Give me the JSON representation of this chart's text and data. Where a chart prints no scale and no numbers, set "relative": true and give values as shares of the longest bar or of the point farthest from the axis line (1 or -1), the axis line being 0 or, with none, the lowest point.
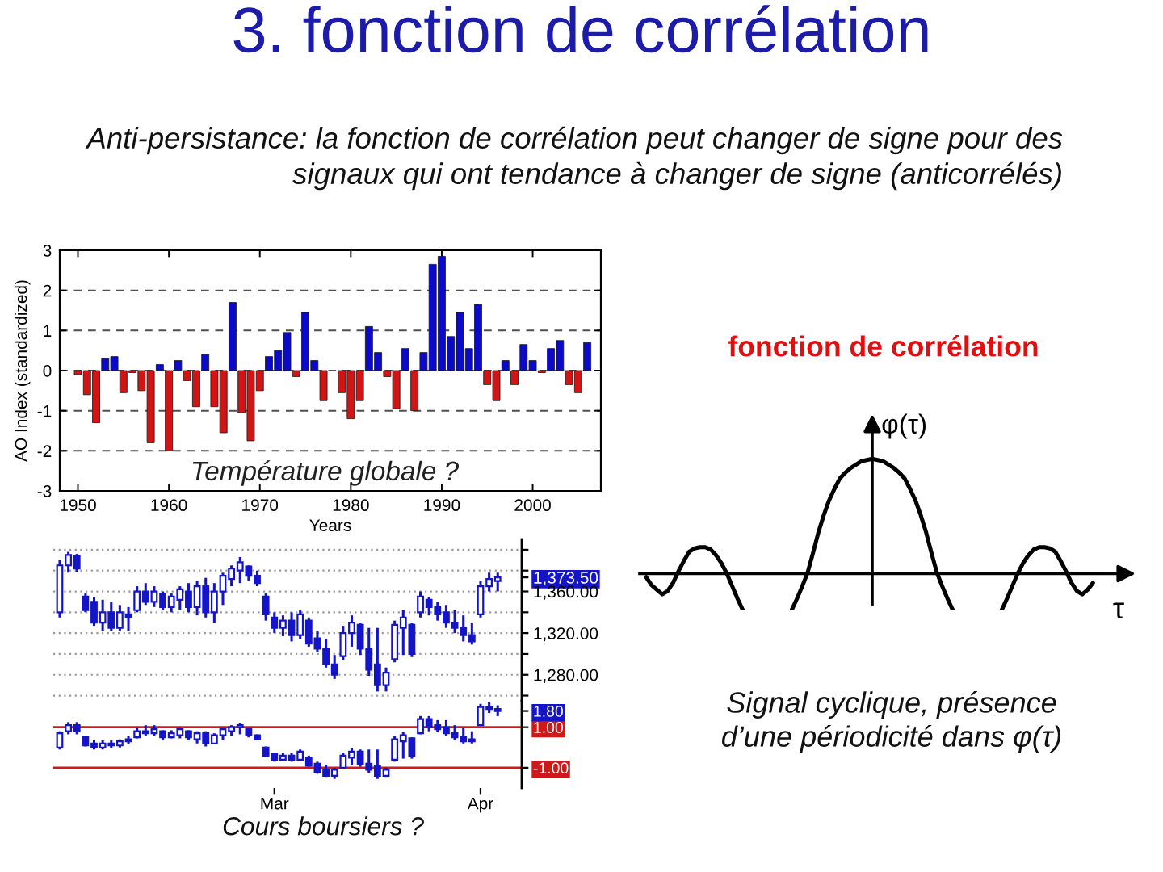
{
  "chart_data": [
    {
      "type": "bar",
      "title": "3. fonction de corrélation",
      "subtitle": "Anti-persistance: la fonction de corrélation peut changer de signe pour des\nsignaux qui ont tendance à changer de signe (anticorrélés)",
      "xlabel": "Years",
      "ylabel": "AO Index (standardized)",
      "annotations": [
        "Température globale ?"
      ],
      "x": [
        1950,
        1951,
        1952,
        1953,
        1954,
        1955,
        1956,
        1957,
        1958,
        1959,
        1960,
        1961,
        1962,
        1963,
        1964,
        1965,
        1966,
        1967,
        1968,
        1969,
        1970,
        1971,
        1972,
        1973,
        1974,
        1975,
        1976,
        1977,
        1978,
        1979,
        1980,
        1981,
        1982,
        1983,
        1984,
        1985,
        1986,
        1987,
        1988,
        1989,
        1990,
        1991,
        1992,
        1993,
        1994,
        1995,
        1996,
        1997,
        1998,
        1999,
        2000,
        2001,
        2002,
        2003,
        2004,
        2005,
        2006
      ],
      "values": [
        -0.1,
        -0.6,
        -1.3,
        0.3,
        0.35,
        -0.55,
        -0.05,
        -0.5,
        -1.8,
        0.15,
        -2.0,
        0.25,
        -0.25,
        -0.9,
        0.4,
        -0.9,
        -1.55,
        1.7,
        -1.05,
        -1.75,
        -0.5,
        0.35,
        0.5,
        0.95,
        -0.15,
        1.45,
        0.25,
        -0.75,
        null,
        -0.55,
        -1.2,
        -0.75,
        1.1,
        0.45,
        -0.15,
        -0.95,
        0.55,
        -1.0,
        0.45,
        2.65,
        2.85,
        0.85,
        1.45,
        0.55,
        1.65,
        -0.35,
        -0.75,
        0.25,
        -0.35,
        0.65,
        0.25,
        -0.05,
        0.55,
        0.75,
        -0.35,
        -0.55,
        0.7
      ],
      "colors": [
        "#d21414",
        "#d21414",
        "#d21414",
        "#0a0ac8",
        "#0a0ac8",
        "#d21414",
        "#d21414",
        "#d21414",
        "#d21414",
        "#0a0ac8",
        "#d21414",
        "#0a0ac8",
        "#d21414",
        "#d21414",
        "#0a0ac8",
        "#d21414",
        "#d21414",
        "#0a0ac8",
        "#d21414",
        "#d21414",
        "#d21414",
        "#0a0ac8",
        "#0a0ac8",
        "#0a0ac8",
        "#d21414",
        "#0a0ac8",
        "#0a0ac8",
        "#d21414",
        "#0a0ac8",
        "#d21414",
        "#d21414",
        "#d21414",
        "#0a0ac8",
        "#0a0ac8",
        "#d21414",
        "#d21414",
        "#0a0ac8",
        "#d21414",
        "#0a0ac8",
        "#0a0ac8",
        "#0a0ac8",
        "#0a0ac8",
        "#0a0ac8",
        "#0a0ac8",
        "#0a0ac8",
        "#d21414",
        "#d21414",
        "#0a0ac8",
        "#d21414",
        "#0a0ac8",
        "#0a0ac8",
        "#d21414",
        "#0a0ac8",
        "#0a0ac8",
        "#d21414",
        "#d21414",
        "#0a0ac8"
      ],
      "xlim": [
        1948,
        2007.5
      ],
      "xticks": [
        1950,
        1960,
        1970,
        1980,
        1990,
        2000
      ],
      "ylim": [
        -3,
        3
      ],
      "yticks": [
        -3,
        -2,
        -1,
        0,
        1,
        2,
        3
      ],
      "grid": "y"
    },
    {
      "type": "line",
      "title": "fonction de corrélation",
      "xlabel": "τ",
      "ylabel": "φ(τ)",
      "annotations": [
        "Signal cyclique, présence\nd’une périodicité dans φ(τ)"
      ],
      "relative": true,
      "categories": [
        null,
        null,
        null,
        null,
        null,
        null,
        null,
        null,
        null,
        null,
        null,
        null,
        null,
        null,
        null,
        null,
        null,
        null,
        null,
        null,
        null,
        null,
        null,
        null,
        null,
        null,
        null,
        null,
        null,
        null,
        null,
        null,
        null,
        null,
        null,
        null,
        null,
        null,
        null,
        null,
        null,
        null,
        null,
        null,
        null,
        null,
        null,
        null,
        null,
        null,
        null,
        null,
        null,
        null,
        null,
        null,
        null,
        null,
        null,
        null,
        null,
        null,
        null,
        null,
        null,
        null,
        null,
        null,
        null,
        null,
        null,
        null,
        null,
        null,
        null,
        null,
        null,
        null,
        null,
        null,
        null,
        null,
        null,
        null
      ],
      "series": [
        {
          "color": "#000000",
          "values": [
            -0.03,
            -0.1,
            -0.14,
            -0.18,
            -0.15,
            -0.08,
            0.02,
            0.11,
            0.19,
            0.22,
            0.23,
            0.23,
            0.21,
            0.16,
            0.09,
            0,
            -0.11,
            -0.22,
            -0.32,
            null,
            null,
            null,
            null,
            null,
            null,
            null,
            null,
            null,
            null,
            null,
            null,
            null,
            null,
            null,
            null,
            null,
            null,
            null,
            null,
            null,
            null,
            null,
            null,
            null,
            null,
            null,
            null,
            null,
            null,
            null,
            null,
            null,
            null,
            null,
            null,
            null,
            null,
            null,
            null,
            null,
            null,
            null,
            null,
            null,
            null,
            null,
            null,
            null,
            null,
            null,
            null,
            null,
            null,
            null,
            null,
            null,
            null,
            null,
            null,
            null,
            null,
            null,
            null,
            null
          ]
        },
        {
          "color": "#000000",
          "values": [
            null,
            null,
            null,
            null,
            null,
            null,
            null,
            null,
            null,
            null,
            null,
            null,
            null,
            null,
            null,
            null,
            null,
            null,
            null,
            null,
            null,
            null,
            null,
            null,
            null,
            null,
            null,
            -0.32,
            -0.22,
            -0.11,
            0.01,
            0.18,
            0.36,
            0.51,
            0.64,
            0.74,
            0.83,
            0.88,
            0.92,
            0.95,
            0.98,
            0.99,
            1,
            0.99,
            0.98,
            0.95,
            0.92,
            0.88,
            0.83,
            0.74,
            0.64,
            0.51,
            0.36,
            0.18,
            0.01,
            -0.11,
            -0.22,
            -0.32,
            null,
            null,
            null,
            null,
            null,
            null,
            null,
            null,
            null,
            null,
            null,
            null,
            null,
            null,
            null,
            null,
            null,
            null,
            null,
            null,
            null,
            null,
            null,
            null,
            null,
            null
          ]
        },
        {
          "color": "#000000",
          "values": [
            null,
            null,
            null,
            null,
            null,
            null,
            null,
            null,
            null,
            null,
            null,
            null,
            null,
            null,
            null,
            null,
            null,
            null,
            null,
            null,
            null,
            null,
            null,
            null,
            null,
            null,
            null,
            null,
            null,
            null,
            null,
            null,
            null,
            null,
            null,
            null,
            null,
            null,
            null,
            null,
            null,
            null,
            null,
            null,
            null,
            null,
            null,
            null,
            null,
            null,
            null,
            null,
            null,
            null,
            null,
            null,
            null,
            null,
            null,
            null,
            null,
            null,
            null,
            null,
            null,
            null,
            -0.32,
            -0.22,
            -0.11,
            0,
            0.09,
            0.16,
            0.21,
            0.23,
            0.23,
            0.22,
            0.19,
            0.11,
            0.02,
            -0.08,
            -0.15,
            -0.18,
            -0.14,
            -0.08
          ]
        }
      ]
    },
    {
      "type": "candlestick",
      "color": "#1414c8",
      "grid": "y",
      "categories": [
        null,
        null,
        null,
        null,
        null,
        null,
        null,
        null,
        null,
        null,
        null,
        null,
        null,
        null,
        null,
        null,
        null,
        null,
        null,
        null,
        null,
        null,
        null,
        null,
        null,
        null,
        null,
        null,
        null,
        null,
        null,
        null,
        null,
        null,
        null,
        null,
        null,
        null,
        null,
        null,
        null,
        null,
        null,
        null,
        null,
        null,
        null,
        null,
        null,
        null,
        null,
        null
      ],
      "ohlc": [
        [
          1340,
          1390,
          1335,
          1385
        ],
        [
          1385,
          1398,
          1378,
          1395
        ],
        [
          1394,
          1396,
          1379,
          1382
        ],
        [
          1355,
          1358,
          1340,
          1342
        ],
        [
          1350,
          1355,
          1327,
          1330
        ],
        [
          1330,
          1352,
          1322,
          1340
        ],
        [
          1340,
          1350,
          1322,
          1325
        ],
        [
          1325,
          1347,
          1322,
          1340
        ],
        [
          1338,
          1345,
          1322,
          1335
        ],
        [
          1342,
          1365,
          1340,
          1360
        ],
        [
          1360,
          1368,
          1347,
          1350
        ],
        [
          1350,
          1365,
          1345,
          1360
        ],
        [
          1358,
          1360,
          1342,
          1345
        ],
        [
          1345,
          1358,
          1340,
          1355
        ],
        [
          1352,
          1365,
          1342,
          1362
        ],
        [
          1360,
          1368,
          1340,
          1345
        ],
        [
          1345,
          1370,
          1337,
          1365
        ],
        [
          1365,
          1373,
          1335,
          1340
        ],
        [
          1340,
          1368,
          1330,
          1360
        ],
        [
          1360,
          1378,
          1347,
          1375
        ],
        [
          1372,
          1385,
          1365,
          1382
        ],
        [
          1380,
          1393,
          1368,
          1388
        ],
        [
          1384,
          1385,
          1370,
          1375
        ],
        [
          1375,
          1380,
          1365,
          1368
        ],
        [
          1355,
          1358,
          1332,
          1338
        ],
        [
          1335,
          1340,
          1320,
          1325
        ],
        [
          1325,
          1337,
          1317,
          1332
        ],
        [
          1332,
          1340,
          1312,
          1318
        ],
        [
          1318,
          1342,
          1314,
          1338
        ],
        [
          1332,
          1335,
          1307,
          1310
        ],
        [
          1315,
          1322,
          1302,
          1305
        ],
        [
          1305,
          1314,
          1287,
          1290
        ],
        [
          1290,
          1299,
          1276,
          1280
        ],
        [
          1298,
          1327,
          1294,
          1320
        ],
        [
          1320,
          1337,
          1307,
          1330
        ],
        [
          1328,
          1330,
          1299,
          1305
        ],
        [
          1305,
          1325,
          1279,
          1285
        ],
        [
          1290,
          1325,
          1264,
          1270
        ],
        [
          1270,
          1287,
          1264,
          1282
        ],
        [
          1295,
          1332,
          1292,
          1328
        ],
        [
          1325,
          1342,
          1299,
          1335
        ],
        [
          1328,
          1330,
          1297,
          1300
        ],
        [
          1340,
          1360,
          1335,
          1355
        ],
        [
          1352,
          1355,
          1337,
          1345
        ],
        [
          1345,
          1350,
          1332,
          1338
        ],
        [
          1340,
          1347,
          1325,
          1330
        ],
        [
          1330,
          1342,
          1320,
          1325
        ],
        [
          1325,
          1337,
          1312,
          1318
        ],
        [
          1318,
          1330,
          1309,
          1312
        ],
        [
          1338,
          1370,
          1335,
          1365
        ],
        [
          1365,
          1378,
          1360,
          1372
        ],
        [
          1370,
          1378,
          1360,
          1373.5
        ]
      ],
      "ylim": [
        1255,
        1410
      ],
      "yticks": [
        {
          "value": 1400,
          "label": null
        },
        {
          "value": 1380,
          "label": null
        },
        {
          "value": 1373.5,
          "label": "1,373.50"
        },
        {
          "value": 1360,
          "label": "1,360.00"
        },
        {
          "value": 1340,
          "label": null
        },
        {
          "value": 1320,
          "label": "1,320.00"
        },
        {
          "value": 1300,
          "label": null
        },
        {
          "value": 1280,
          "label": "1,280.00"
        },
        {
          "value": 1260,
          "label": null
        }
      ]
    },
    {
      "type": "candlestick",
      "color": "#1414c8",
      "annotations": [
        "Cours boursiers ?"
      ],
      "categories": [
        null,
        null,
        null,
        null,
        null,
        null,
        null,
        null,
        null,
        null,
        null,
        null,
        null,
        null,
        null,
        null,
        null,
        null,
        null,
        null,
        null,
        null,
        null,
        null,
        null,
        "Mar",
        null,
        null,
        null,
        null,
        null,
        null,
        null,
        null,
        null,
        null,
        null,
        null,
        null,
        null,
        null,
        null,
        null,
        null,
        null,
        null,
        null,
        null,
        null,
        "Apr",
        null,
        null
      ],
      "ohlc": [
        [
          0.0,
          0.8,
          -0.1,
          0.7
        ],
        [
          0.8,
          1.25,
          0.65,
          1.1
        ],
        [
          1.1,
          1.25,
          0.65,
          0.8
        ],
        [
          0.5,
          0.55,
          0.05,
          0.1
        ],
        [
          0.2,
          0.35,
          -0.1,
          0.0
        ],
        [
          0.0,
          0.35,
          -0.1,
          0.2
        ],
        [
          0.2,
          0.35,
          -0.05,
          0.1
        ],
        [
          0.1,
          0.4,
          0.0,
          0.3
        ],
        [
          0.3,
          0.55,
          0.15,
          0.4
        ],
        [
          0.5,
          0.95,
          0.45,
          0.8
        ],
        [
          0.8,
          1.1,
          0.55,
          0.7
        ],
        [
          0.7,
          1.1,
          0.55,
          0.9
        ],
        [
          0.8,
          0.85,
          0.35,
          0.5
        ],
        [
          0.5,
          0.85,
          0.45,
          0.7
        ],
        [
          0.6,
          0.95,
          0.45,
          0.9
        ],
        [
          0.8,
          0.85,
          0.35,
          0.5
        ],
        [
          0.4,
          0.8,
          0.2,
          0.7
        ],
        [
          0.7,
          0.8,
          0.05,
          0.2
        ],
        [
          0.2,
          0.7,
          0.15,
          0.6
        ],
        [
          0.6,
          0.95,
          0.35,
          0.9
        ],
        [
          0.8,
          1.1,
          0.55,
          1.0
        ],
        [
          1.0,
          1.2,
          0.65,
          1.1
        ],
        [
          0.9,
          0.95,
          0.5,
          0.6
        ],
        [
          0.6,
          0.65,
          0.35,
          0.4
        ],
        [
          0.0,
          0.05,
          -0.45,
          -0.4
        ],
        [
          -0.3,
          -0.25,
          -0.7,
          -0.6
        ],
        [
          -0.6,
          -0.25,
          -0.65,
          -0.4
        ],
        [
          -0.4,
          -0.25,
          -0.7,
          -0.6
        ],
        [
          -0.6,
          -0.1,
          -0.65,
          -0.2
        ],
        [
          -0.5,
          -0.4,
          -0.95,
          -0.9
        ],
        [
          -0.8,
          -0.7,
          -1.3,
          -1.2
        ],
        [
          -1.1,
          -0.85,
          -1.45,
          -1.4
        ],
        [
          -1.4,
          -1.0,
          -1.55,
          -1.1
        ],
        [
          -1.0,
          -0.25,
          -1.0,
          -0.4
        ],
        [
          -0.5,
          -0.05,
          -0.85,
          -0.2
        ],
        [
          -0.2,
          -0.1,
          -0.95,
          -0.8
        ],
        [
          -0.8,
          -0.1,
          -1.25,
          -1.1
        ],
        [
          -0.9,
          -0.1,
          -1.55,
          -1.4
        ],
        [
          -1.4,
          -1.0,
          -1.45,
          -1.1
        ],
        [
          -0.6,
          0.55,
          -0.7,
          0.4
        ],
        [
          0.3,
          0.75,
          -0.55,
          0.6
        ],
        [
          0.45,
          0.5,
          -0.55,
          -0.4
        ],
        [
          0.7,
          1.55,
          0.65,
          1.4
        ],
        [
          1.4,
          1.55,
          0.8,
          1.0
        ],
        [
          1.1,
          1.35,
          0.75,
          0.9
        ],
        [
          1.0,
          1.35,
          0.55,
          0.7
        ],
        [
          0.7,
          1.1,
          0.35,
          0.5
        ],
        [
          0.5,
          0.95,
          0.2,
          0.3
        ],
        [
          0.4,
          0.8,
          0.2,
          0.3
        ],
        [
          1.1,
          2.15,
          1.1,
          2.0
        ],
        [
          2.0,
          2.25,
          1.7,
          1.9
        ],
        [
          1.9,
          2.08,
          1.55,
          1.8
        ]
      ],
      "ylim": [
        -2,
        2.3
      ],
      "yticks": [
        {
          "value": -1,
          "label": "-1.00"
        },
        {
          "value": 1,
          "label": "1.00"
        },
        {
          "value": 1.8,
          "label": "1.80"
        }
      ],
      "ref_lines": [
        {
          "axis": "y",
          "value": 1,
          "color": "#d01818"
        },
        {
          "axis": "y",
          "value": -1,
          "color": "#d01818"
        }
      ]
    }
  ]
}
